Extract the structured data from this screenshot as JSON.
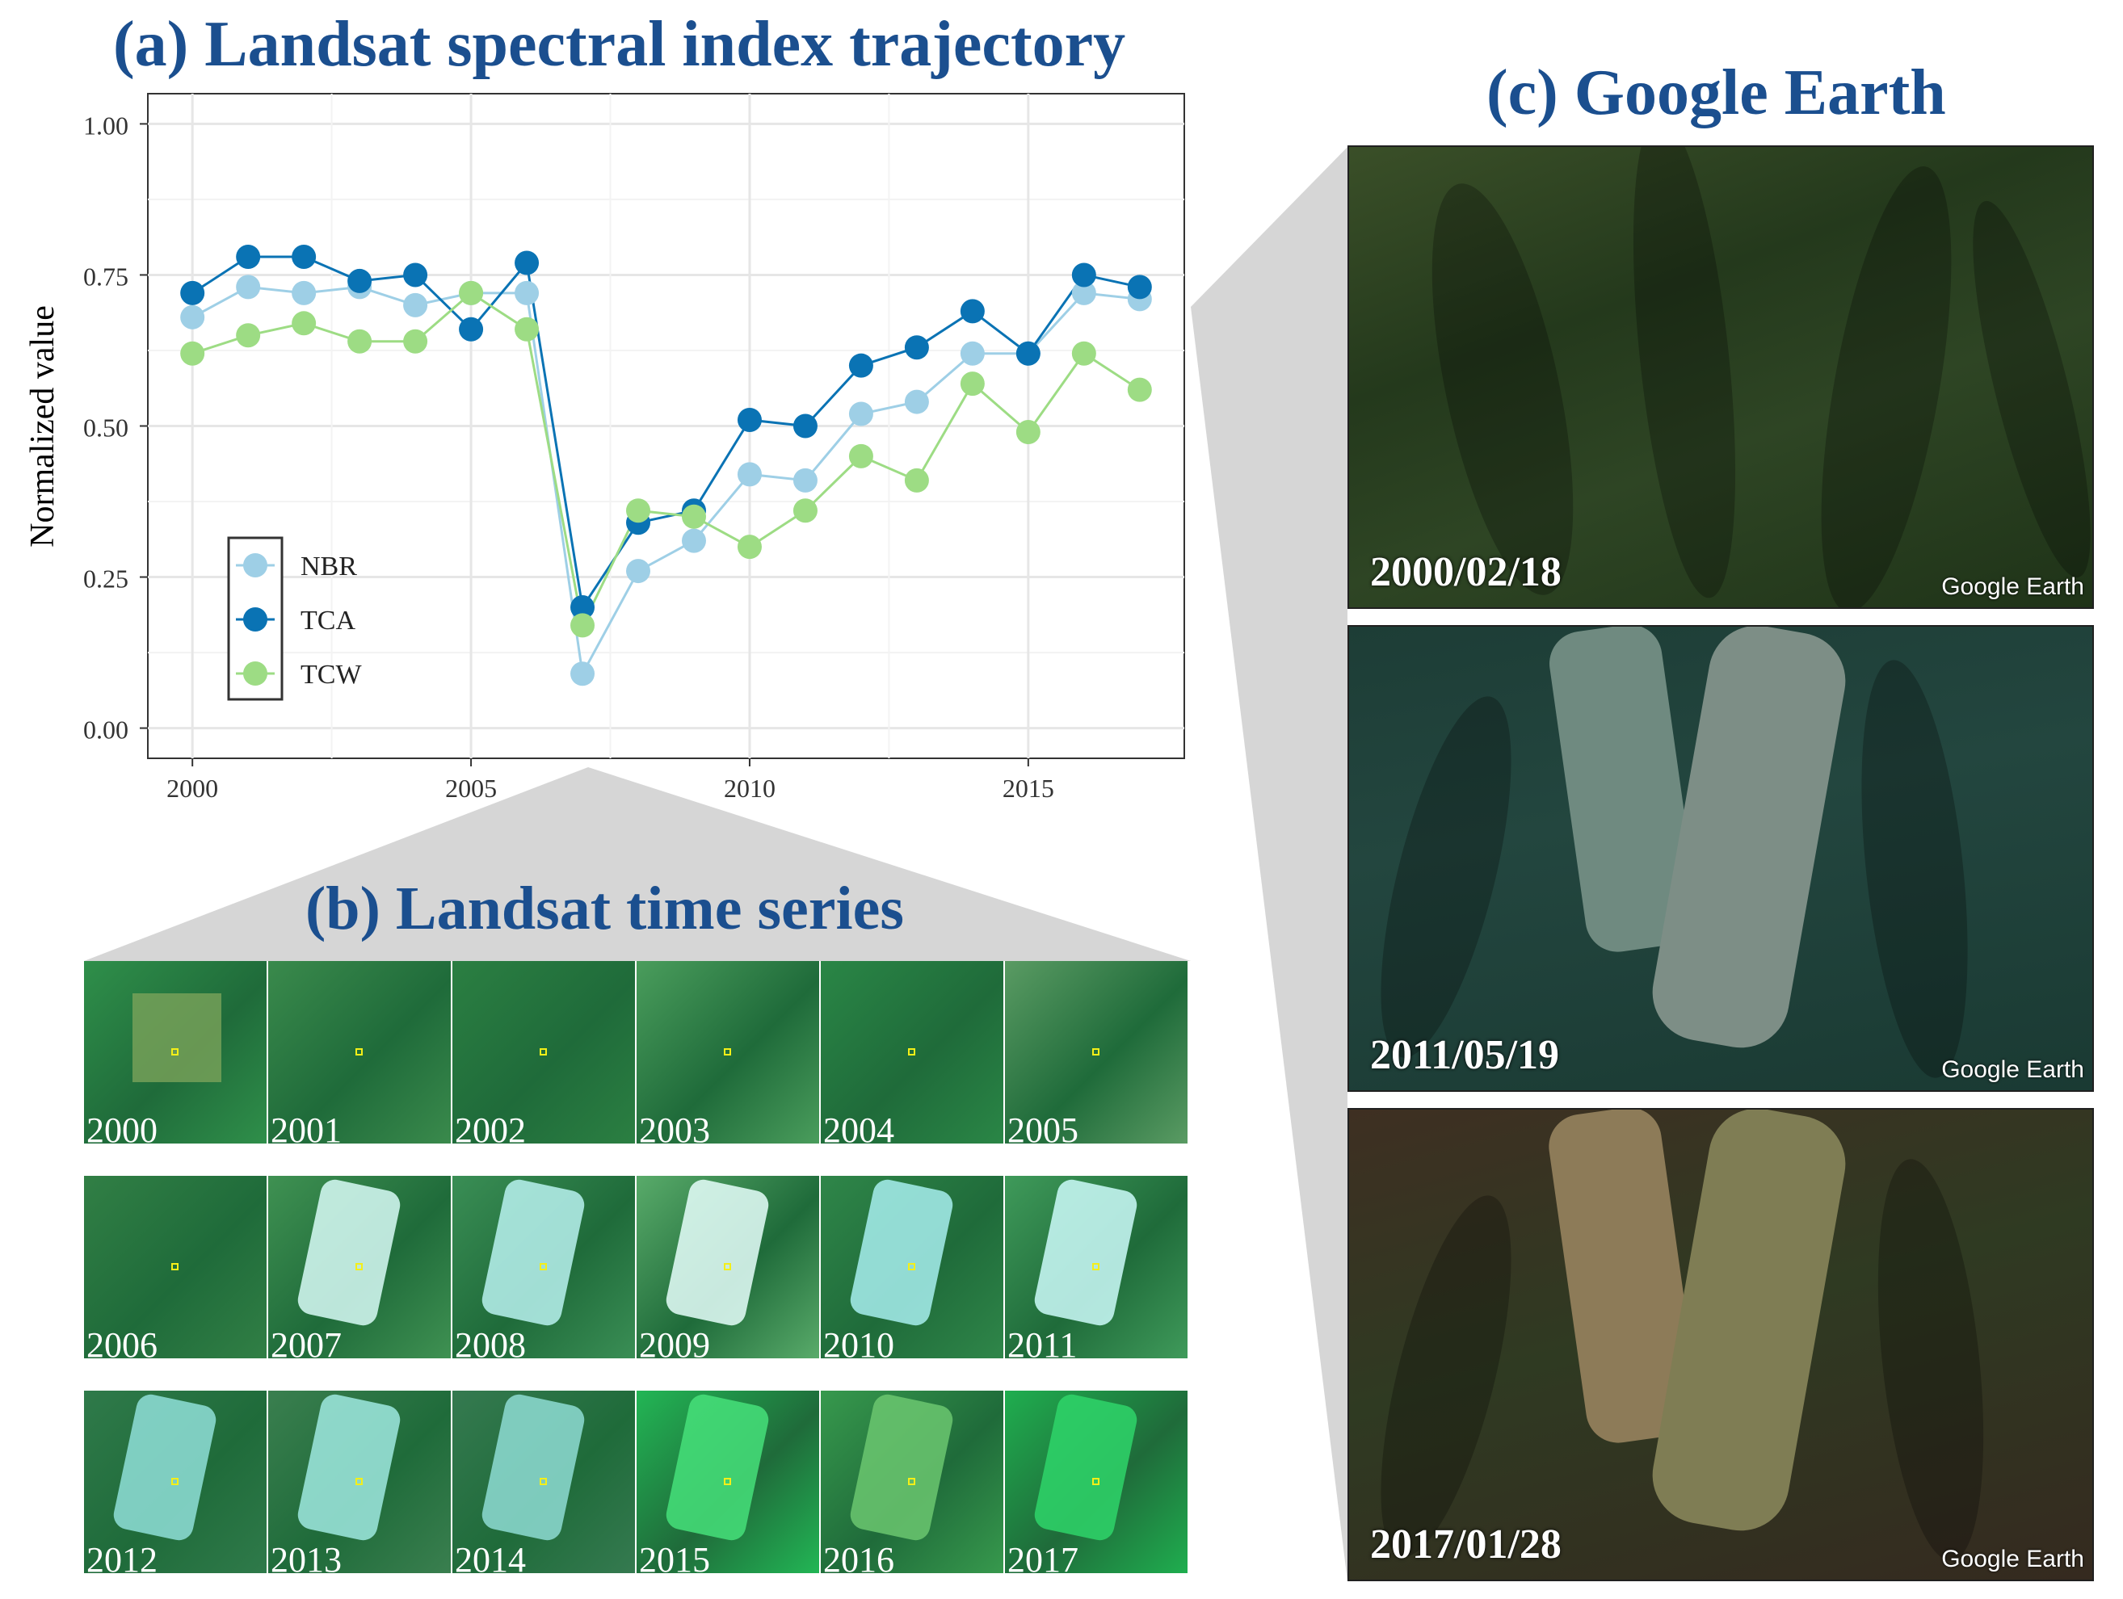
{
  "panel_a": {
    "title": "(a) Landsat spectral index trajectory"
  },
  "panel_b": {
    "title": "(b) Landsat time series",
    "years": [
      "2000",
      "2001",
      "2002",
      "2003",
      "2004",
      "2005",
      "2006",
      "2007",
      "2008",
      "2009",
      "2010",
      "2011",
      "2012",
      "2013",
      "2014",
      "2015",
      "2016",
      "2017"
    ]
  },
  "panel_c": {
    "title": "(c) Google Earth",
    "images": [
      {
        "date": "2000/02/18",
        "watermark": "Google Earth"
      },
      {
        "date": "2011/05/19",
        "watermark": "Google Earth"
      },
      {
        "date": "2017/01/28",
        "watermark": "Google Earth"
      }
    ]
  },
  "chart_data": {
    "type": "line",
    "title": "(a) Landsat spectral index trajectory",
    "xlabel": "",
    "ylabel": "Normalized value",
    "x": [
      2000,
      2001,
      2002,
      2003,
      2004,
      2005,
      2006,
      2007,
      2008,
      2009,
      2010,
      2011,
      2012,
      2013,
      2014,
      2015,
      2016,
      2017
    ],
    "xlim": [
      1999.2,
      2017.8
    ],
    "ylim": [
      -0.05,
      1.05
    ],
    "x_ticks": [
      2000,
      2005,
      2010,
      2015
    ],
    "x_tick_labels": [
      "2000",
      "2005",
      "2010",
      "2015"
    ],
    "y_ticks": [
      0,
      0.25,
      0.5,
      0.75,
      1.0
    ],
    "y_tick_labels": [
      "0.00",
      "0.25",
      "0.50",
      "0.75",
      "1.00"
    ],
    "grid": true,
    "legend_position": "bottom-left",
    "series": [
      {
        "name": "NBR",
        "color": "#9ecfe6",
        "values": [
          0.68,
          0.73,
          0.72,
          0.73,
          0.7,
          0.72,
          0.72,
          0.09,
          0.26,
          0.31,
          0.42,
          0.41,
          0.52,
          0.54,
          0.62,
          0.62,
          0.72,
          0.71
        ]
      },
      {
        "name": "TCA",
        "color": "#0a73b4",
        "values": [
          0.72,
          0.78,
          0.78,
          0.74,
          0.75,
          0.66,
          0.77,
          0.2,
          0.34,
          0.36,
          0.51,
          0.5,
          0.6,
          0.63,
          0.69,
          0.62,
          0.75,
          0.73
        ]
      },
      {
        "name": "TCW",
        "color": "#9ddc84",
        "values": [
          0.62,
          0.65,
          0.67,
          0.64,
          0.64,
          0.72,
          0.66,
          0.17,
          0.36,
          0.35,
          0.3,
          0.36,
          0.45,
          0.41,
          0.57,
          0.49,
          0.62,
          0.56
        ]
      }
    ]
  }
}
